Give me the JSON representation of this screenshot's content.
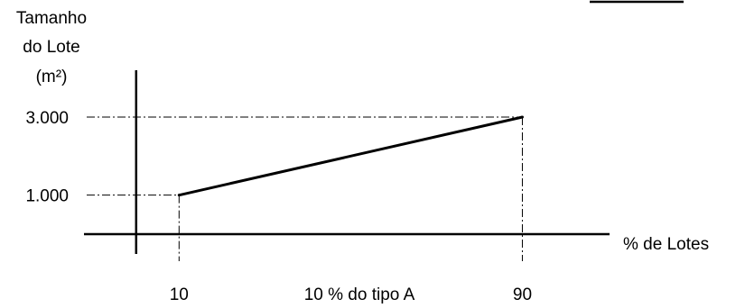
{
  "chart_data": {
    "type": "line",
    "ylabel": [
      "Tamanho",
      "do Lote",
      "(m²)"
    ],
    "xlabel": "% de Lotes",
    "x_ticks": [
      {
        "value": 10,
        "label": "10"
      },
      {
        "value": 90,
        "label": "90"
      }
    ],
    "y_ticks": [
      {
        "value": 1000,
        "label": "1.000"
      },
      {
        "value": 3000,
        "label": "3.000"
      }
    ],
    "annotation": "10 % do tipo A",
    "series": [
      {
        "x": [
          10,
          90
        ],
        "y": [
          1000,
          3000
        ]
      }
    ],
    "xlim": [
      -17,
      112
    ],
    "ylim": [
      -1500,
      4500
    ],
    "reference_lines": "dash-dot guides from each point to both axes",
    "colors": {
      "line": "#000000",
      "axes": "#000000"
    }
  }
}
